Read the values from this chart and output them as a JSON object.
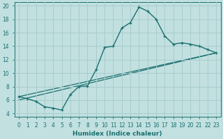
{
  "xlabel": "Humidex (Indice chaleur)",
  "xlim": [
    -0.5,
    23.5
  ],
  "ylim": [
    3.5,
    20.5
  ],
  "xticks": [
    0,
    1,
    2,
    3,
    4,
    5,
    6,
    7,
    8,
    9,
    10,
    11,
    12,
    13,
    14,
    15,
    16,
    17,
    18,
    19,
    20,
    21,
    22,
    23
  ],
  "yticks": [
    4,
    6,
    8,
    10,
    12,
    14,
    16,
    18,
    20
  ],
  "background_color": "#c2e0e0",
  "grid_color": "#a8cccc",
  "line_color": "#1a7070",
  "curve1_x": [
    0,
    1,
    2,
    3,
    4,
    5,
    6,
    7,
    8,
    9,
    10,
    11,
    12,
    13,
    14,
    15,
    16,
    17,
    18,
    19,
    20,
    21,
    22,
    23
  ],
  "curve1_y": [
    6.5,
    6.2,
    5.8,
    5.0,
    4.8,
    4.5,
    6.8,
    8.0,
    8.1,
    10.5,
    13.8,
    14.0,
    16.7,
    17.5,
    19.8,
    19.2,
    18.0,
    15.5,
    14.3,
    14.5,
    14.3,
    14.0,
    13.5,
    13.0
  ],
  "line1_x": [
    0,
    23
  ],
  "line1_y": [
    6.5,
    13.0
  ],
  "line2_x": [
    0,
    23
  ],
  "line2_y": [
    6.0,
    13.0
  ]
}
